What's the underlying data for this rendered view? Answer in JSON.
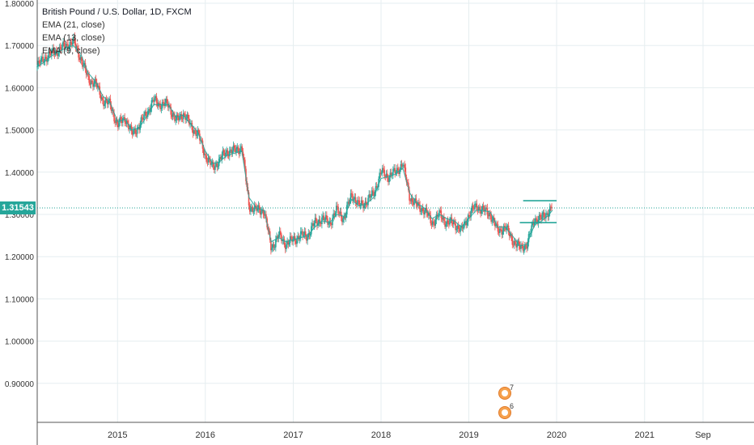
{
  "legend": {
    "symbol": "British Pound / U.S. Dollar, 1D, FXCM",
    "ema_a": "EMA (21, close)",
    "ema_b": "EMA (13, close)",
    "ema_c": "EMA (9, close)"
  },
  "current_price_label": "1.31543",
  "events": {
    "count_a": "7",
    "count_b": "6"
  },
  "colors": {
    "up": "#26a69a",
    "down": "#ef5350",
    "grid": "#e6eef0",
    "price_line": "#26a69a",
    "ema": "#26a69a",
    "axis_text": "#333333"
  },
  "chart_data": {
    "type": "candlestick",
    "title": "British Pound / U.S. Dollar, 1D, FXCM",
    "xlabel": "",
    "ylabel": "",
    "ylim": [
      0.8,
      1.8
    ],
    "y_ticks": [
      "1.80000",
      "1.70000",
      "1.60000",
      "1.50000",
      "1.40000",
      "1.30000",
      "1.20000",
      "1.10000",
      "1.00000",
      "0.90000"
    ],
    "y_tick_values": [
      1.8,
      1.7,
      1.6,
      1.5,
      1.4,
      1.3,
      1.2,
      1.1,
      1.0,
      0.9
    ],
    "x_ticks": [
      "2015",
      "2016",
      "2017",
      "2018",
      "2019",
      "2020",
      "2021",
      "Sep"
    ],
    "x_tick_values": [
      "2015-01-01",
      "2016-01-01",
      "2017-01-01",
      "2018-01-01",
      "2019-01-01",
      "2020-01-01",
      "2021-01-01",
      "2021-09-01"
    ],
    "xlim": [
      "2014-02-01",
      "2022-04-01"
    ],
    "last_price": 1.31543,
    "close_series": [
      [
        "2014-02-01",
        1.65
      ],
      [
        "2014-03-01",
        1.67
      ],
      [
        "2014-04-01",
        1.68
      ],
      [
        "2014-05-01",
        1.69
      ],
      [
        "2014-06-01",
        1.7
      ],
      [
        "2014-07-01",
        1.71
      ],
      [
        "2014-08-01",
        1.67
      ],
      [
        "2014-09-01",
        1.62
      ],
      [
        "2014-10-01",
        1.61
      ],
      [
        "2014-11-01",
        1.57
      ],
      [
        "2014-12-01",
        1.56
      ],
      [
        "2015-01-01",
        1.51
      ],
      [
        "2015-02-01",
        1.53
      ],
      [
        "2015-03-01",
        1.49
      ],
      [
        "2015-04-01",
        1.51
      ],
      [
        "2015-05-01",
        1.54
      ],
      [
        "2015-06-01",
        1.57
      ],
      [
        "2015-07-01",
        1.56
      ],
      [
        "2015-08-01",
        1.56
      ],
      [
        "2015-09-01",
        1.52
      ],
      [
        "2015-10-01",
        1.54
      ],
      [
        "2015-11-01",
        1.51
      ],
      [
        "2015-12-01",
        1.49
      ],
      [
        "2016-01-01",
        1.44
      ],
      [
        "2016-02-01",
        1.41
      ],
      [
        "2016-03-01",
        1.43
      ],
      [
        "2016-04-01",
        1.45
      ],
      [
        "2016-05-01",
        1.45
      ],
      [
        "2016-06-01",
        1.46
      ],
      [
        "2016-07-01",
        1.32
      ],
      [
        "2016-08-01",
        1.31
      ],
      [
        "2016-09-01",
        1.31
      ],
      [
        "2016-10-01",
        1.22
      ],
      [
        "2016-11-01",
        1.25
      ],
      [
        "2016-12-01",
        1.23
      ],
      [
        "2017-01-01",
        1.24
      ],
      [
        "2017-02-01",
        1.25
      ],
      [
        "2017-03-01",
        1.25
      ],
      [
        "2017-04-01",
        1.28
      ],
      [
        "2017-05-01",
        1.29
      ],
      [
        "2017-06-01",
        1.28
      ],
      [
        "2017-07-01",
        1.31
      ],
      [
        "2017-08-01",
        1.29
      ],
      [
        "2017-09-01",
        1.35
      ],
      [
        "2017-10-01",
        1.32
      ],
      [
        "2017-11-01",
        1.33
      ],
      [
        "2017-12-01",
        1.35
      ],
      [
        "2018-01-01",
        1.4
      ],
      [
        "2018-02-01",
        1.39
      ],
      [
        "2018-03-01",
        1.4
      ],
      [
        "2018-04-01",
        1.42
      ],
      [
        "2018-05-01",
        1.34
      ],
      [
        "2018-06-01",
        1.32
      ],
      [
        "2018-07-01",
        1.31
      ],
      [
        "2018-08-01",
        1.28
      ],
      [
        "2018-09-01",
        1.3
      ],
      [
        "2018-10-01",
        1.28
      ],
      [
        "2018-11-01",
        1.28
      ],
      [
        "2018-12-01",
        1.26
      ],
      [
        "2019-01-01",
        1.3
      ],
      [
        "2019-02-01",
        1.32
      ],
      [
        "2019-03-01",
        1.31
      ],
      [
        "2019-04-01",
        1.3
      ],
      [
        "2019-05-01",
        1.26
      ],
      [
        "2019-06-01",
        1.27
      ],
      [
        "2019-07-01",
        1.24
      ],
      [
        "2019-08-01",
        1.22
      ],
      [
        "2019-09-01",
        1.23
      ],
      [
        "2019-10-01",
        1.29
      ],
      [
        "2019-11-01",
        1.29
      ],
      [
        "2019-12-01",
        1.31
      ],
      [
        "2019-12-15",
        1.32
      ]
    ],
    "ema_series": [
      [
        "2014-02-01",
        1.65
      ],
      [
        "2014-03-01",
        1.66
      ],
      [
        "2014-04-01",
        1.675
      ],
      [
        "2014-05-01",
        1.685
      ],
      [
        "2014-06-01",
        1.695
      ],
      [
        "2014-07-01",
        1.7
      ],
      [
        "2014-08-01",
        1.68
      ],
      [
        "2014-09-01",
        1.635
      ],
      [
        "2014-10-01",
        1.615
      ],
      [
        "2014-11-01",
        1.58
      ],
      [
        "2014-12-01",
        1.565
      ],
      [
        "2015-01-01",
        1.52
      ],
      [
        "2015-02-01",
        1.525
      ],
      [
        "2015-03-01",
        1.5
      ],
      [
        "2015-04-01",
        1.505
      ],
      [
        "2015-05-01",
        1.53
      ],
      [
        "2015-06-01",
        1.56
      ],
      [
        "2015-07-01",
        1.56
      ],
      [
        "2015-08-01",
        1.56
      ],
      [
        "2015-09-01",
        1.53
      ],
      [
        "2015-10-01",
        1.535
      ],
      [
        "2015-11-01",
        1.515
      ],
      [
        "2015-12-01",
        1.495
      ],
      [
        "2016-01-01",
        1.45
      ],
      [
        "2016-02-01",
        1.42
      ],
      [
        "2016-03-01",
        1.425
      ],
      [
        "2016-04-01",
        1.44
      ],
      [
        "2016-05-01",
        1.445
      ],
      [
        "2016-06-01",
        1.45
      ],
      [
        "2016-07-01",
        1.34
      ],
      [
        "2016-08-01",
        1.315
      ],
      [
        "2016-09-01",
        1.31
      ],
      [
        "2016-10-01",
        1.235
      ],
      [
        "2016-11-01",
        1.245
      ],
      [
        "2016-12-01",
        1.235
      ],
      [
        "2017-01-01",
        1.24
      ],
      [
        "2017-02-01",
        1.245
      ],
      [
        "2017-03-01",
        1.25
      ],
      [
        "2017-04-01",
        1.27
      ],
      [
        "2017-05-01",
        1.285
      ],
      [
        "2017-06-01",
        1.28
      ],
      [
        "2017-07-01",
        1.3
      ],
      [
        "2017-08-01",
        1.295
      ],
      [
        "2017-09-01",
        1.335
      ],
      [
        "2017-10-01",
        1.32
      ],
      [
        "2017-11-01",
        1.325
      ],
      [
        "2017-12-01",
        1.34
      ],
      [
        "2018-01-01",
        1.385
      ],
      [
        "2018-02-01",
        1.39
      ],
      [
        "2018-03-01",
        1.395
      ],
      [
        "2018-04-01",
        1.41
      ],
      [
        "2018-05-01",
        1.35
      ],
      [
        "2018-06-01",
        1.325
      ],
      [
        "2018-07-01",
        1.315
      ],
      [
        "2018-08-01",
        1.29
      ],
      [
        "2018-09-01",
        1.3
      ],
      [
        "2018-10-01",
        1.29
      ],
      [
        "2018-11-01",
        1.285
      ],
      [
        "2018-12-01",
        1.27
      ],
      [
        "2019-01-01",
        1.29
      ],
      [
        "2019-02-01",
        1.31
      ],
      [
        "2019-03-01",
        1.31
      ],
      [
        "2019-04-01",
        1.305
      ],
      [
        "2019-05-01",
        1.27
      ],
      [
        "2019-06-01",
        1.27
      ],
      [
        "2019-07-01",
        1.25
      ],
      [
        "2019-08-01",
        1.225
      ],
      [
        "2019-09-01",
        1.23
      ],
      [
        "2019-10-01",
        1.275
      ],
      [
        "2019-11-01",
        1.285
      ],
      [
        "2019-12-01",
        1.3
      ],
      [
        "2019-12-15",
        1.31
      ]
    ],
    "horizontal_levels": [
      {
        "price": 1.3325,
        "from": "2019-08-15",
        "to": "2020-01-01"
      },
      {
        "price": 1.2805,
        "from": "2019-08-01",
        "to": "2020-01-01"
      }
    ]
  }
}
